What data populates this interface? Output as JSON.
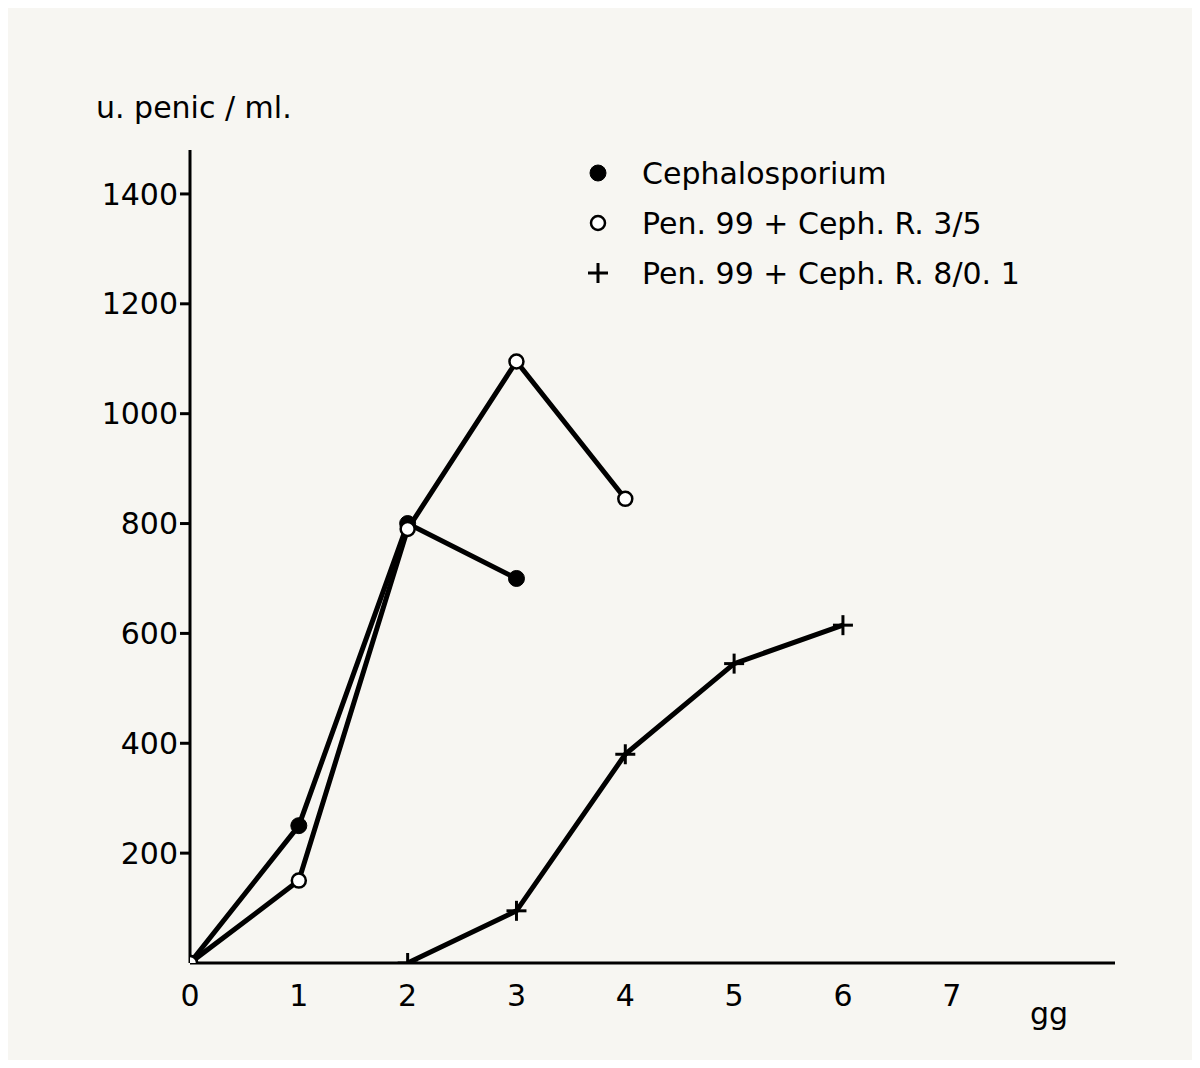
{
  "chart_data": {
    "type": "line",
    "x_label": "gg",
    "y_label": "u. penic / ml.",
    "xlim": [
      0,
      8.5
    ],
    "xticks": [
      0,
      1,
      2,
      3,
      4,
      5,
      6,
      7
    ],
    "ylim": [
      0,
      1480
    ],
    "yticks": [
      200,
      400,
      600,
      800,
      1000,
      1200,
      1400
    ],
    "grid": false,
    "legend": "upper right",
    "series": [
      {
        "name": "Cephalosporium",
        "color": "#000000",
        "marker": "filled_circle",
        "line_style": "solid",
        "x": [
          0,
          1,
          2,
          3
        ],
        "values": [
          0,
          250,
          800,
          700
        ]
      },
      {
        "name": "Pen. 99 + Ceph. R. 3/5",
        "color": "#000000",
        "marker": "open_circle",
        "line_style": "solid",
        "x": [
          0,
          1,
          2,
          3,
          4
        ],
        "values": [
          0,
          150,
          790,
          1095,
          845
        ]
      },
      {
        "name": "Pen. 99 + Ceph. R. 8/0. 1",
        "color": "#000000",
        "marker": "plus",
        "line_style": "solid",
        "x": [
          2,
          3,
          4,
          5,
          6
        ],
        "values": [
          0,
          95,
          380,
          545,
          615
        ]
      }
    ]
  }
}
